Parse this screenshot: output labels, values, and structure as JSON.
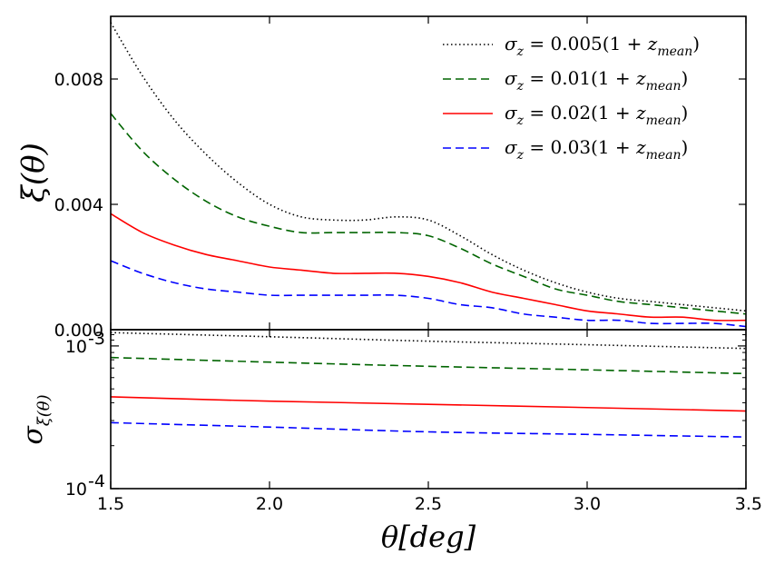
{
  "chart_data": [
    {
      "type": "line",
      "panel": "top",
      "ylabel": "ξ(θ)",
      "xlabel": "",
      "xlim": [
        1.5,
        3.5
      ],
      "ylim": [
        0.0,
        0.01
      ],
      "yticks": [
        0.0,
        0.004,
        0.008
      ],
      "ytick_labels": [
        "0.000",
        "0.004",
        "0.008"
      ],
      "x": [
        1.5,
        1.6,
        1.7,
        1.8,
        1.9,
        2.0,
        2.1,
        2.2,
        2.3,
        2.4,
        2.5,
        2.6,
        2.7,
        2.8,
        2.9,
        3.0,
        3.1,
        3.2,
        3.3,
        3.4,
        3.5
      ],
      "series": [
        {
          "name": "σz = 0.005(1 + zmean)",
          "color": "#000000",
          "style": "dotted",
          "values": [
            0.0098,
            0.0081,
            0.0067,
            0.0056,
            0.0047,
            0.004,
            0.0036,
            0.0035,
            0.0035,
            0.0036,
            0.0035,
            0.003,
            0.0024,
            0.0019,
            0.0015,
            0.0012,
            0.001,
            0.0009,
            0.0008,
            0.0007,
            0.0006
          ]
        },
        {
          "name": "σz = 0.01(1 + zmean)",
          "color": "#006400",
          "style": "dashed",
          "values": [
            0.0069,
            0.0057,
            0.0048,
            0.0041,
            0.0036,
            0.0033,
            0.0031,
            0.0031,
            0.0031,
            0.0031,
            0.003,
            0.0026,
            0.0021,
            0.0017,
            0.0013,
            0.0011,
            0.0009,
            0.0008,
            0.0007,
            0.0006,
            0.0005
          ]
        },
        {
          "name": "σz = 0.02(1 + zmean)",
          "color": "#ff0000",
          "style": "solid",
          "values": [
            0.0037,
            0.0031,
            0.0027,
            0.0024,
            0.0022,
            0.002,
            0.0019,
            0.0018,
            0.0018,
            0.0018,
            0.0017,
            0.0015,
            0.0012,
            0.001,
            0.0008,
            0.0006,
            0.0005,
            0.0004,
            0.0004,
            0.0003,
            0.0003
          ]
        },
        {
          "name": "σz = 0.03(1 + zmean)",
          "color": "#0000ff",
          "style": "dashed",
          "values": [
            0.0022,
            0.0018,
            0.0015,
            0.0013,
            0.0012,
            0.0011,
            0.0011,
            0.0011,
            0.0011,
            0.0011,
            0.001,
            0.0008,
            0.0007,
            0.0005,
            0.0004,
            0.0003,
            0.0003,
            0.0002,
            0.0002,
            0.0002,
            0.0001
          ]
        }
      ],
      "legend": {
        "placement": "top-right",
        "entries": [
          {
            "main": "σ",
            "sub": "z",
            "mid": " = 0.005(1 + ",
            "z": "z",
            "zsub": "mean",
            "close": ")"
          },
          {
            "main": "σ",
            "sub": "z",
            "mid": " = 0.01(1 + ",
            "z": "z",
            "zsub": "mean",
            "close": ")"
          },
          {
            "main": "σ",
            "sub": "z",
            "mid": " = 0.02(1 + ",
            "z": "z",
            "zsub": "mean",
            "close": ")"
          },
          {
            "main": "σ",
            "sub": "z",
            "mid": " = 0.03(1 + ",
            "z": "z",
            "zsub": "mean",
            "close": ")"
          }
        ]
      }
    },
    {
      "type": "line",
      "panel": "bottom",
      "yscale": "log",
      "ylabel": "σξ(θ)",
      "ylabel_main": "σ",
      "ylabel_sub": "ξ(θ)",
      "xlabel": "θ[deg]",
      "xlim": [
        1.5,
        3.5
      ],
      "ylim": [
        0.0001,
        0.0013
      ],
      "yticks": [
        0.0001,
        0.001
      ],
      "ytick_labels": [
        {
          "base": "10",
          "exp": "-4"
        },
        {
          "base": "10",
          "exp": "-3"
        }
      ],
      "xticks": [
        1.5,
        2.0,
        2.5,
        3.0,
        3.5
      ],
      "xtick_labels": [
        "1.5",
        "2.0",
        "2.5",
        "3.0",
        "3.5"
      ],
      "x": [
        1.5,
        2.0,
        2.5,
        3.0,
        3.5
      ],
      "series": [
        {
          "name": "σz = 0.005(1 + zmean)",
          "color": "#000000",
          "style": "dotted",
          "values": [
            0.00124,
            0.00116,
            0.00108,
            0.00102,
            0.00096
          ]
        },
        {
          "name": "σz = 0.01(1 + zmean)",
          "color": "#006400",
          "style": "dashed",
          "values": [
            0.00083,
            0.00077,
            0.00072,
            0.00068,
            0.00064
          ]
        },
        {
          "name": "σz = 0.02(1 + zmean)",
          "color": "#ff0000",
          "style": "solid",
          "values": [
            0.00044,
            0.00041,
            0.00039,
            0.00037,
            0.00035
          ]
        },
        {
          "name": "σz = 0.03(1 + zmean)",
          "color": "#0000ff",
          "style": "dashed",
          "values": [
            0.00029,
            0.00027,
            0.00025,
            0.00024,
            0.00023
          ]
        }
      ]
    }
  ]
}
